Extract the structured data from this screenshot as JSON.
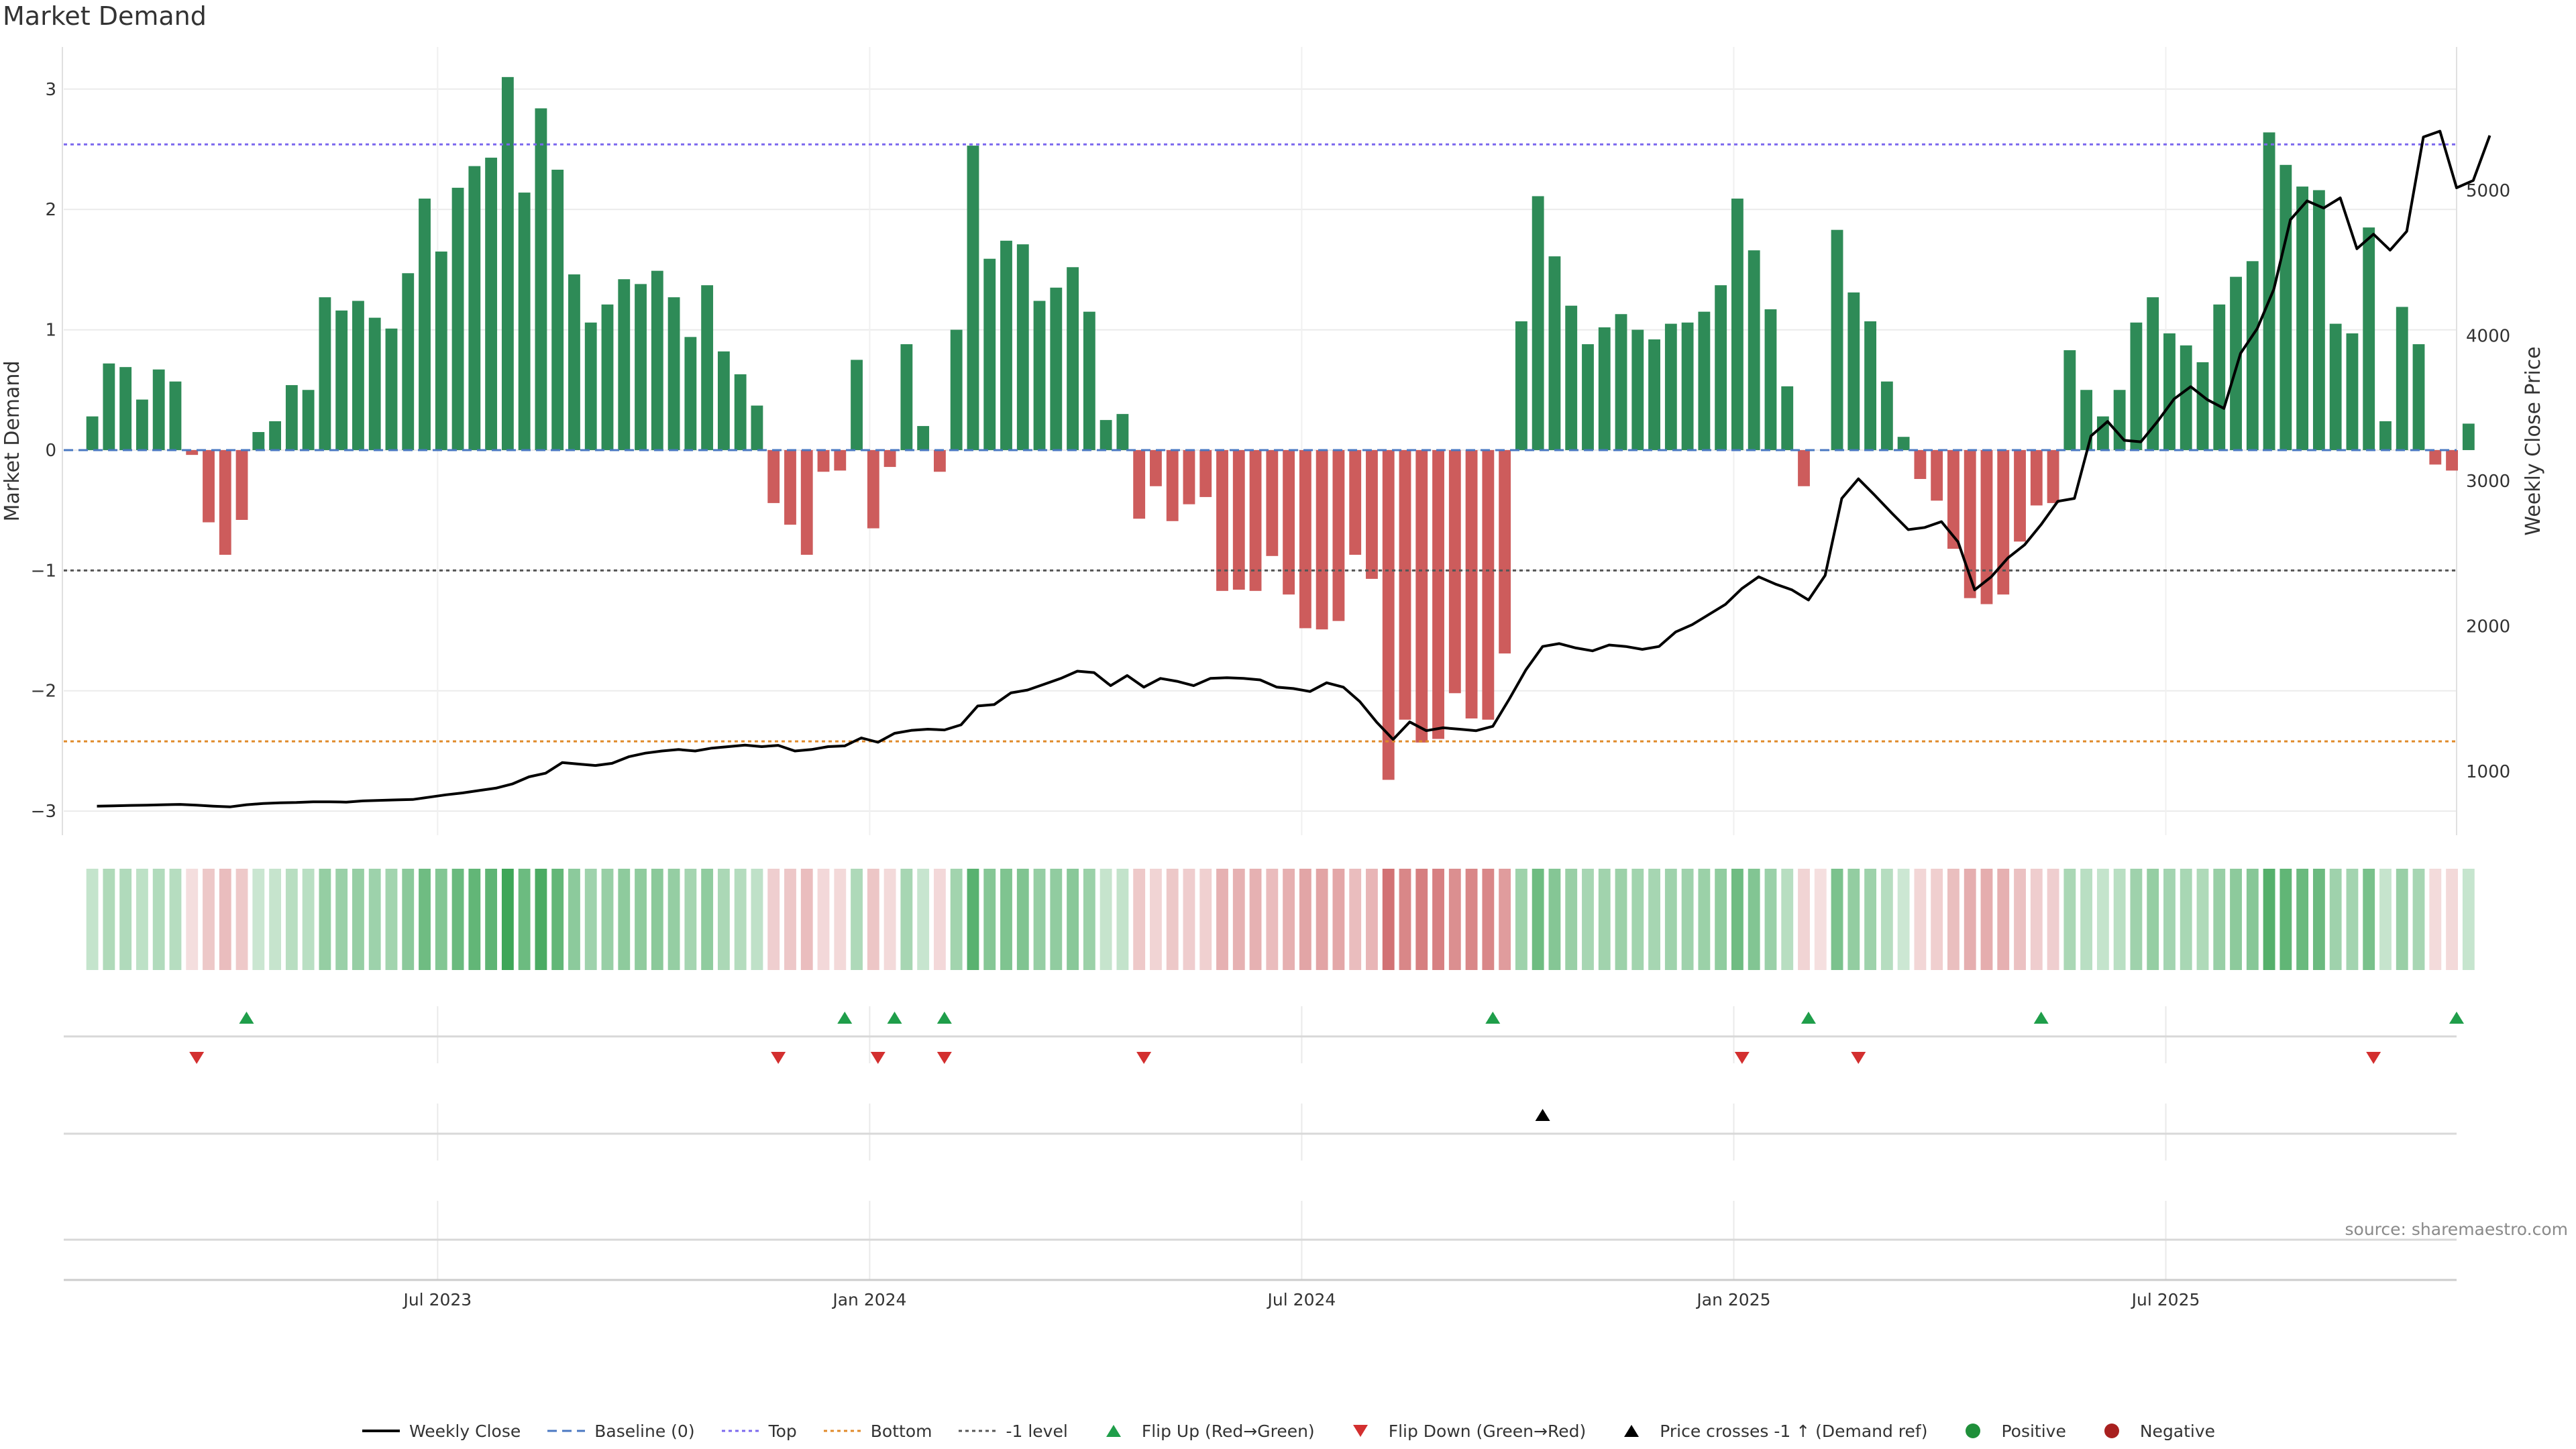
{
  "title": "Market Demand",
  "source": "source: sharemaestro.com",
  "colors": {
    "positive": "#2e8b57",
    "negative": "#cd5c5c",
    "price": "#000000",
    "top_line": "#7b68ee",
    "bottom_line": "#e08a2a",
    "minus1_line": "#555555",
    "flip_up": "#1f9e4a",
    "flip_down": "#d32f2f",
    "baseline": "#4a78c2"
  },
  "chart_data": {
    "type": "bar",
    "title": "Market Demand",
    "ylabel": "Market Demand",
    "y2label": "Weekly Close Price",
    "ylim": [
      -3.2,
      3.35
    ],
    "y2lim": [
      560,
      5990
    ],
    "yticks": [
      -3,
      -2,
      -1,
      0,
      1,
      2,
      3
    ],
    "yticklabels": [
      "−3",
      "−2",
      "−1",
      "0",
      "1",
      "2",
      "3"
    ],
    "y2ticks": [
      1000,
      2000,
      3000,
      4000,
      5000
    ],
    "y2ticklabels": [
      "1000",
      "2000",
      "3000",
      "4000",
      "5000"
    ],
    "x_start_index": -2,
    "x_end_index": 142,
    "xticks": [
      {
        "index": 20.5,
        "label": "Jul 2023"
      },
      {
        "index": 46.5,
        "label": "Jan 2024"
      },
      {
        "index": 72.5,
        "label": "Jul 2024"
      },
      {
        "index": 98.5,
        "label": "Jan 2025"
      },
      {
        "index": 124.5,
        "label": "Jul 2025"
      }
    ],
    "reference_lines": {
      "top": 2.54,
      "bottom": -2.42,
      "minus1": -1.0,
      "baseline": 0
    },
    "demand": [
      0.28,
      0.72,
      0.69,
      0.42,
      0.67,
      0.57,
      -0.04,
      -0.6,
      -0.87,
      -0.58,
      0.15,
      0.24,
      0.54,
      0.5,
      1.27,
      1.16,
      1.24,
      1.1,
      1.01,
      1.47,
      2.09,
      1.65,
      2.18,
      2.36,
      2.43,
      3.1,
      2.14,
      2.84,
      2.33,
      1.46,
      1.06,
      1.21,
      1.42,
      1.38,
      1.49,
      1.27,
      0.94,
      1.37,
      0.82,
      0.63,
      0.37,
      -0.44,
      -0.62,
      -0.87,
      -0.18,
      -0.17,
      0.75,
      -0.65,
      -0.14,
      0.88,
      0.2,
      -0.18,
      1.0,
      2.53,
      1.59,
      1.74,
      1.71,
      1.24,
      1.35,
      1.52,
      1.15,
      0.25,
      0.3,
      -0.57,
      -0.3,
      -0.59,
      -0.45,
      -0.39,
      -1.17,
      -1.16,
      -1.17,
      -0.88,
      -1.2,
      -1.48,
      -1.49,
      -1.42,
      -0.87,
      -1.07,
      -2.74,
      -2.24,
      -2.43,
      -2.4,
      -2.02,
      -2.23,
      -2.24,
      -1.69,
      1.07,
      2.11,
      1.61,
      1.2,
      0.88,
      1.02,
      1.13,
      1.0,
      0.92,
      1.05,
      1.06,
      1.15,
      1.37,
      2.09,
      1.66,
      1.17,
      0.53,
      -0.3,
      0.0,
      1.83,
      1.31,
      1.07,
      0.57,
      0.11,
      -0.24,
      -0.42,
      -0.82,
      -1.23,
      -1.28,
      -1.2,
      -0.76,
      -0.46,
      -0.44,
      0.83,
      0.5,
      0.28,
      0.5,
      1.06,
      1.27,
      0.97,
      0.87,
      0.73,
      1.21,
      1.44,
      1.57,
      2.64,
      2.37,
      2.19,
      2.16,
      1.05,
      0.97,
      1.85,
      0.24,
      1.19,
      0.88,
      -0.12,
      -0.17,
      0.22
    ],
    "price": [
      760,
      762,
      765,
      767,
      770,
      772,
      767,
      760,
      755,
      770,
      778,
      783,
      785,
      790,
      790,
      788,
      796,
      800,
      803,
      806,
      822,
      838,
      851,
      868,
      884,
      913,
      962,
      987,
      1060,
      1050,
      1040,
      1055,
      1100,
      1125,
      1140,
      1150,
      1140,
      1160,
      1170,
      1180,
      1170,
      1179,
      1140,
      1150,
      1170,
      1175,
      1230,
      1200,
      1262,
      1282,
      1290,
      1285,
      1320,
      1450,
      1460,
      1540,
      1560,
      1600,
      1640,
      1690,
      1680,
      1590,
      1660,
      1580,
      1640,
      1620,
      1590,
      1640,
      1645,
      1640,
      1630,
      1580,
      1570,
      1550,
      1610,
      1580,
      1480,
      1340,
      1220,
      1340,
      1280,
      1300,
      1290,
      1280,
      1310,
      1500,
      1700,
      1860,
      1880,
      1850,
      1830,
      1870,
      1860,
      1840,
      1860,
      1960,
      2010,
      2080,
      2150,
      2260,
      2340,
      2290,
      2250,
      2180,
      2350,
      2880,
      3015,
      2900,
      2780,
      2665,
      2680,
      2720,
      2580,
      2250,
      2340,
      2470,
      2560,
      2700,
      2860,
      2880,
      3310,
      3410,
      3280,
      3270,
      3410,
      3565,
      3650,
      3560,
      3500,
      3880,
      4050,
      4320,
      4800,
      4930,
      4880,
      4950,
      4600,
      4700,
      4590,
      4720,
      5370,
      5410,
      5020,
      5070,
      5380
    ],
    "demand_ref_price": 2210,
    "flip_up_index": [
      9,
      45,
      48,
      51,
      84,
      103,
      117,
      142
    ],
    "flip_down_index": [
      6,
      41,
      47,
      51,
      63,
      99,
      106,
      137
    ],
    "price_cross_index": [
      87
    ]
  },
  "legend": [
    {
      "key": "weekly_close",
      "label": "Weekly Close"
    },
    {
      "key": "baseline",
      "label": "Baseline (0)"
    },
    {
      "key": "top",
      "label": "Top"
    },
    {
      "key": "bottom",
      "label": "Bottom"
    },
    {
      "key": "minus1",
      "label": "-1 level"
    },
    {
      "key": "flip_up",
      "label": "Flip Up (Red→Green)"
    },
    {
      "key": "flip_down",
      "label": "Flip Down (Green→Red)"
    },
    {
      "key": "price_cross",
      "label": "Price crosses -1 ↑ (Demand ref)"
    },
    {
      "key": "positive",
      "label": "Positive"
    },
    {
      "key": "negative",
      "label": "Negative"
    }
  ]
}
